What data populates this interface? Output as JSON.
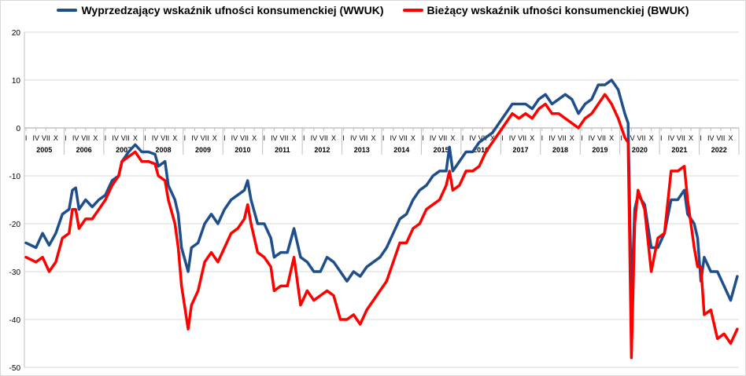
{
  "chart_data": {
    "type": "line",
    "ylim": [
      -50,
      20
    ],
    "yticks": [
      20,
      10,
      0,
      -10,
      -20,
      -30,
      -40,
      -50
    ],
    "x_start": "2005-01",
    "x_end": "2022-12",
    "month_labels": [
      "I",
      "IV",
      "VII",
      "X"
    ],
    "years": [
      "2005",
      "2006",
      "2007",
      "2008",
      "2009",
      "2010",
      "2011",
      "2012",
      "2013",
      "2014",
      "2015",
      "2016",
      "2017",
      "2018",
      "2019",
      "2020",
      "2021",
      "2022"
    ],
    "colors": {
      "WWUK": "#1f4e8c",
      "BWUK": "#ff0000"
    },
    "series": [
      {
        "name": "Wyprzedzający wskaźnik ufności konsumenckiej (WWUK)",
        "key": "WWUK",
        "points": [
          [
            "2005-01",
            -24
          ],
          [
            "2005-04",
            -25
          ],
          [
            "2005-06",
            -22
          ],
          [
            "2005-08",
            -24.5
          ],
          [
            "2005-10",
            -22
          ],
          [
            "2005-12",
            -18
          ],
          [
            "2006-02",
            -17
          ],
          [
            "2006-03",
            -13
          ],
          [
            "2006-04",
            -12.5
          ],
          [
            "2006-05",
            -17
          ],
          [
            "2006-07",
            -15
          ],
          [
            "2006-09",
            -16.5
          ],
          [
            "2006-11",
            -15
          ],
          [
            "2007-01",
            -14
          ],
          [
            "2007-03",
            -11
          ],
          [
            "2007-05",
            -10
          ],
          [
            "2007-06",
            -7
          ],
          [
            "2007-08",
            -5
          ],
          [
            "2007-10",
            -3.5
          ],
          [
            "2007-12",
            -5
          ],
          [
            "2008-02",
            -5
          ],
          [
            "2008-04",
            -5.5
          ],
          [
            "2008-05",
            -8
          ],
          [
            "2008-07",
            -7
          ],
          [
            "2008-08",
            -12
          ],
          [
            "2008-10",
            -15
          ],
          [
            "2008-11",
            -18
          ],
          [
            "2008-12",
            -25
          ],
          [
            "2009-02",
            -30
          ],
          [
            "2009-03",
            -25
          ],
          [
            "2009-05",
            -24
          ],
          [
            "2009-07",
            -20
          ],
          [
            "2009-09",
            -18
          ],
          [
            "2009-11",
            -20
          ],
          [
            "2010-01",
            -17
          ],
          [
            "2010-03",
            -15
          ],
          [
            "2010-05",
            -14
          ],
          [
            "2010-07",
            -13
          ],
          [
            "2010-08",
            -11
          ],
          [
            "2010-09",
            -15
          ],
          [
            "2010-11",
            -20
          ],
          [
            "2011-01",
            -20
          ],
          [
            "2011-03",
            -23
          ],
          [
            "2011-04",
            -27
          ],
          [
            "2011-06",
            -26
          ],
          [
            "2011-08",
            -26
          ],
          [
            "2011-10",
            -21
          ],
          [
            "2011-12",
            -27
          ],
          [
            "2012-02",
            -28
          ],
          [
            "2012-04",
            -30
          ],
          [
            "2012-06",
            -30
          ],
          [
            "2012-08",
            -27
          ],
          [
            "2012-10",
            -28
          ],
          [
            "2012-12",
            -30
          ],
          [
            "2013-02",
            -32
          ],
          [
            "2013-04",
            -30
          ],
          [
            "2013-06",
            -31
          ],
          [
            "2013-08",
            -29
          ],
          [
            "2013-10",
            -28
          ],
          [
            "2013-12",
            -27
          ],
          [
            "2014-02",
            -25
          ],
          [
            "2014-04",
            -22
          ],
          [
            "2014-06",
            -19
          ],
          [
            "2014-08",
            -18
          ],
          [
            "2014-10",
            -15
          ],
          [
            "2014-12",
            -13
          ],
          [
            "2015-02",
            -12
          ],
          [
            "2015-04",
            -10
          ],
          [
            "2015-06",
            -9
          ],
          [
            "2015-08",
            -9
          ],
          [
            "2015-09",
            -4
          ],
          [
            "2015-10",
            -9
          ],
          [
            "2015-12",
            -7
          ],
          [
            "2016-02",
            -5
          ],
          [
            "2016-04",
            -5
          ],
          [
            "2016-06",
            -3
          ],
          [
            "2016-08",
            -2
          ],
          [
            "2016-10",
            -1
          ],
          [
            "2016-12",
            1
          ],
          [
            "2017-02",
            3
          ],
          [
            "2017-04",
            5
          ],
          [
            "2017-06",
            5
          ],
          [
            "2017-08",
            5
          ],
          [
            "2017-10",
            4
          ],
          [
            "2017-12",
            6
          ],
          [
            "2018-02",
            7
          ],
          [
            "2018-04",
            5
          ],
          [
            "2018-06",
            6
          ],
          [
            "2018-08",
            7
          ],
          [
            "2018-10",
            6
          ],
          [
            "2018-12",
            3
          ],
          [
            "2019-02",
            5
          ],
          [
            "2019-04",
            6
          ],
          [
            "2019-06",
            9
          ],
          [
            "2019-08",
            9
          ],
          [
            "2019-10",
            10
          ],
          [
            "2019-12",
            8
          ],
          [
            "2020-02",
            3
          ],
          [
            "2020-03",
            1
          ],
          [
            "2020-04",
            -36
          ],
          [
            "2020-05",
            -17
          ],
          [
            "2020-06",
            -14
          ],
          [
            "2020-08",
            -16
          ],
          [
            "2020-10",
            -25
          ],
          [
            "2020-12",
            -25
          ],
          [
            "2021-02",
            -22
          ],
          [
            "2021-04",
            -15
          ],
          [
            "2021-06",
            -15
          ],
          [
            "2021-08",
            -13
          ],
          [
            "2021-09",
            -18
          ],
          [
            "2021-11",
            -20
          ],
          [
            "2021-12",
            -23
          ],
          [
            "2022-01",
            -32
          ],
          [
            "2022-02",
            -27
          ],
          [
            "2022-04",
            -30
          ],
          [
            "2022-06",
            -30
          ],
          [
            "2022-08",
            -33
          ],
          [
            "2022-10",
            -36
          ],
          [
            "2022-12",
            -31
          ]
        ]
      },
      {
        "name": "Bieżący wskaźnik ufności konsumenckiej (BWUK)",
        "key": "BWUK",
        "points": [
          [
            "2005-01",
            -27
          ],
          [
            "2005-04",
            -28
          ],
          [
            "2005-06",
            -27
          ],
          [
            "2005-08",
            -30
          ],
          [
            "2005-10",
            -28
          ],
          [
            "2005-12",
            -23
          ],
          [
            "2006-02",
            -22
          ],
          [
            "2006-03",
            -17
          ],
          [
            "2006-04",
            -17
          ],
          [
            "2006-05",
            -21
          ],
          [
            "2006-07",
            -19
          ],
          [
            "2006-09",
            -19
          ],
          [
            "2006-11",
            -17
          ],
          [
            "2007-01",
            -15
          ],
          [
            "2007-03",
            -12
          ],
          [
            "2007-05",
            -10
          ],
          [
            "2007-06",
            -7
          ],
          [
            "2007-08",
            -6
          ],
          [
            "2007-10",
            -5
          ],
          [
            "2007-12",
            -7
          ],
          [
            "2008-02",
            -7
          ],
          [
            "2008-04",
            -7.5
          ],
          [
            "2008-05",
            -10
          ],
          [
            "2008-07",
            -11
          ],
          [
            "2008-08",
            -15
          ],
          [
            "2008-10",
            -20
          ],
          [
            "2008-11",
            -25
          ],
          [
            "2008-12",
            -33
          ],
          [
            "2009-02",
            -42
          ],
          [
            "2009-03",
            -37
          ],
          [
            "2009-05",
            -34
          ],
          [
            "2009-07",
            -28
          ],
          [
            "2009-09",
            -26
          ],
          [
            "2009-11",
            -28
          ],
          [
            "2010-01",
            -25
          ],
          [
            "2010-03",
            -22
          ],
          [
            "2010-05",
            -21
          ],
          [
            "2010-07",
            -19
          ],
          [
            "2010-08",
            -16
          ],
          [
            "2010-09",
            -20
          ],
          [
            "2010-11",
            -26
          ],
          [
            "2011-01",
            -27
          ],
          [
            "2011-03",
            -29
          ],
          [
            "2011-04",
            -34
          ],
          [
            "2011-06",
            -33
          ],
          [
            "2011-08",
            -33
          ],
          [
            "2011-10",
            -27
          ],
          [
            "2011-12",
            -37
          ],
          [
            "2012-02",
            -34
          ],
          [
            "2012-04",
            -36
          ],
          [
            "2012-06",
            -35
          ],
          [
            "2012-08",
            -34
          ],
          [
            "2012-10",
            -35
          ],
          [
            "2012-12",
            -40
          ],
          [
            "2013-02",
            -40
          ],
          [
            "2013-04",
            -39
          ],
          [
            "2013-06",
            -41
          ],
          [
            "2013-08",
            -38
          ],
          [
            "2013-10",
            -36
          ],
          [
            "2013-12",
            -34
          ],
          [
            "2014-02",
            -32
          ],
          [
            "2014-04",
            -28
          ],
          [
            "2014-06",
            -24
          ],
          [
            "2014-08",
            -24
          ],
          [
            "2014-10",
            -21
          ],
          [
            "2014-12",
            -20
          ],
          [
            "2015-02",
            -17
          ],
          [
            "2015-04",
            -16
          ],
          [
            "2015-06",
            -15
          ],
          [
            "2015-08",
            -12
          ],
          [
            "2015-09",
            -9
          ],
          [
            "2015-10",
            -13
          ],
          [
            "2015-12",
            -12
          ],
          [
            "2016-02",
            -9
          ],
          [
            "2016-04",
            -9
          ],
          [
            "2016-06",
            -8
          ],
          [
            "2016-08",
            -5
          ],
          [
            "2016-10",
            -3
          ],
          [
            "2016-12",
            -1
          ],
          [
            "2017-02",
            1
          ],
          [
            "2017-04",
            3
          ],
          [
            "2017-06",
            2
          ],
          [
            "2017-08",
            3
          ],
          [
            "2017-10",
            2
          ],
          [
            "2017-12",
            4
          ],
          [
            "2018-02",
            5
          ],
          [
            "2018-04",
            3
          ],
          [
            "2018-06",
            3
          ],
          [
            "2018-08",
            2
          ],
          [
            "2018-10",
            1
          ],
          [
            "2018-12",
            0
          ],
          [
            "2019-02",
            2
          ],
          [
            "2019-04",
            3
          ],
          [
            "2019-06",
            5
          ],
          [
            "2019-08",
            7
          ],
          [
            "2019-10",
            5
          ],
          [
            "2019-12",
            2
          ],
          [
            "2020-02",
            -2
          ],
          [
            "2020-03",
            -3
          ],
          [
            "2020-04",
            -48
          ],
          [
            "2020-05",
            -20
          ],
          [
            "2020-06",
            -13
          ],
          [
            "2020-08",
            -17
          ],
          [
            "2020-10",
            -30
          ],
          [
            "2020-12",
            -23
          ],
          [
            "2021-02",
            -22
          ],
          [
            "2021-04",
            -9
          ],
          [
            "2021-06",
            -9
          ],
          [
            "2021-08",
            -8
          ],
          [
            "2021-09",
            -15
          ],
          [
            "2021-11",
            -25
          ],
          [
            "2021-12",
            -29
          ],
          [
            "2022-01",
            -29
          ],
          [
            "2022-02",
            -39
          ],
          [
            "2022-04",
            -38
          ],
          [
            "2022-06",
            -44
          ],
          [
            "2022-08",
            -43
          ],
          [
            "2022-10",
            -45
          ],
          [
            "2022-12",
            -42
          ]
        ]
      }
    ]
  }
}
